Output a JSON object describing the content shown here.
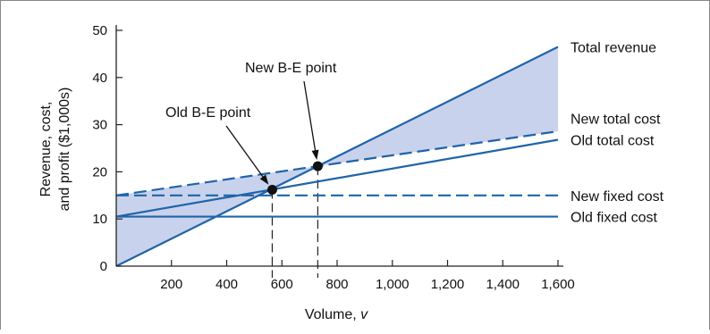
{
  "chart_data": {
    "type": "line",
    "title": "",
    "xlabel": "Volume, ",
    "xlabel_var": "v",
    "ylabel_line1": "Revenue, cost,",
    "ylabel_line2": "and profit ($1,000s)",
    "xlim": [
      0,
      1600
    ],
    "ylim": [
      0,
      50
    ],
    "x_ticks": [
      200,
      400,
      600,
      800,
      1000,
      1200,
      1400,
      1600
    ],
    "x_tick_labels": [
      "200",
      "400",
      "600",
      "800",
      "1,000",
      "1,200",
      "1,400",
      "1,600"
    ],
    "y_ticks": [
      0,
      10,
      20,
      30,
      40,
      50
    ],
    "y_tick_labels": [
      "0",
      "10",
      "20",
      "30",
      "40",
      "50"
    ],
    "grid": false,
    "legend": "none",
    "series": [
      {
        "name": "Total revenue",
        "style": "solid",
        "x": [
          0,
          1600
        ],
        "y": [
          0,
          46.5
        ]
      },
      {
        "name": "New total cost",
        "style": "dashed",
        "x": [
          0,
          1600
        ],
        "y": [
          15,
          28.6
        ]
      },
      {
        "name": "Old total cost",
        "style": "solid",
        "x": [
          0,
          1600
        ],
        "y": [
          10.5,
          26.8
        ]
      },
      {
        "name": "New fixed cost",
        "style": "dashed",
        "x": [
          0,
          1600
        ],
        "y": [
          15,
          15
        ]
      },
      {
        "name": "Old fixed cost",
        "style": "solid",
        "x": [
          0,
          1600
        ],
        "y": [
          10.5,
          10.5
        ]
      }
    ],
    "breakeven_points": [
      {
        "label": "Old B-E point",
        "x": 565,
        "y": 16.2
      },
      {
        "label": "New B-E point",
        "x": 730,
        "y": 21.2
      }
    ],
    "shaded_region": "area between total revenue and new total cost",
    "colors": {
      "line": "#1f64a8",
      "fill": "#c9d2ec",
      "axis": "#222222",
      "point": "#111111"
    }
  }
}
